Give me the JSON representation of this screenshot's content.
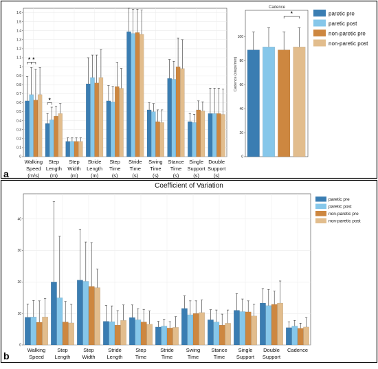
{
  "figure_labels": {
    "a": "a",
    "b": "b"
  },
  "legend": [
    {
      "name": "paretic pre",
      "color": "#3a7db2"
    },
    {
      "name": "paretic post",
      "color": "#86c7ea"
    },
    {
      "name": "non-paretic pre",
      "color": "#cd8740"
    },
    {
      "name": "non-paretic post",
      "color": "#e2bd8d"
    }
  ],
  "chart_data": [
    {
      "id": "spatiotemporal",
      "type": "bar",
      "grid": true,
      "ylim": [
        0,
        1.65
      ],
      "yticks": [
        "0",
        "0.1",
        "0.2",
        "0.3",
        "0.4",
        "0.5",
        "0.6",
        "0.7",
        "0.8",
        "0.9",
        "1",
        "1.1",
        "1.2",
        "1.3",
        "1.4",
        "1.5",
        "1.6"
      ],
      "categories": [
        [
          "Walking",
          "Speed",
          "(m/s)"
        ],
        [
          "Step",
          "Length",
          "(m)"
        ],
        [
          "Step",
          "Width",
          "(m)"
        ],
        [
          "Stride",
          "Length",
          "(m)"
        ],
        [
          "Step",
          "Time",
          "(s)"
        ],
        [
          "Stride",
          "Time",
          "(s)"
        ],
        [
          "Swing",
          "Time",
          "(s)"
        ],
        [
          "Stance",
          "Time",
          "(s)"
        ],
        [
          "Single",
          "Support",
          "(s)"
        ],
        [
          "Double",
          "Support",
          "(s)"
        ]
      ],
      "series": [
        {
          "name": "paretic pre",
          "values": [
            0.62,
            0.37,
            0.17,
            0.81,
            0.62,
            1.39,
            0.52,
            0.87,
            0.39,
            0.48
          ],
          "errors": [
            0.27,
            0.11,
            0.04,
            0.29,
            0.17,
            0.26,
            0.08,
            0.21,
            0.09,
            0.28
          ]
        },
        {
          "name": "paretic post",
          "values": [
            0.69,
            0.41,
            0.17,
            0.88,
            0.61,
            1.37,
            0.5,
            0.86,
            0.38,
            0.48
          ],
          "errors": [
            0.3,
            0.14,
            0.04,
            0.25,
            0.17,
            0.27,
            0.09,
            0.2,
            0.09,
            0.28
          ]
        },
        {
          "name": "non-paretic pre",
          "values": [
            0.63,
            0.45,
            0.17,
            0.82,
            0.78,
            1.38,
            0.39,
            1.0,
            0.52,
            0.48
          ],
          "errors": [
            0.34,
            0.11,
            0.04,
            0.31,
            0.27,
            0.26,
            0.13,
            0.32,
            0.1,
            0.28
          ]
        },
        {
          "name": "non-paretic post",
          "values": [
            0.69,
            0.48,
            0.17,
            0.88,
            0.76,
            1.36,
            0.38,
            0.98,
            0.51,
            0.47
          ],
          "errors": [
            0.3,
            0.11,
            0.04,
            0.31,
            0.22,
            0.27,
            0.14,
            0.32,
            0.1,
            0.28
          ]
        }
      ],
      "annotations": [
        "*",
        "*",
        "*"
      ]
    },
    {
      "id": "cadence",
      "type": "bar",
      "title": "Cadence",
      "ylabel": "Cadence (steps/min)",
      "ylim": [
        0,
        122
      ],
      "yticks": [
        "0",
        "20",
        "40",
        "60",
        "80",
        "100"
      ],
      "series": [
        {
          "name": "paretic pre",
          "values": [
            89
          ],
          "errors": [
            15
          ]
        },
        {
          "name": "paretic post",
          "values": [
            91.5
          ],
          "errors": [
            16
          ]
        },
        {
          "name": "non-paretic pre",
          "values": [
            89
          ],
          "errors": [
            15
          ]
        },
        {
          "name": "non-paretic post",
          "values": [
            91.5
          ],
          "errors": [
            16
          ]
        }
      ],
      "annotations": [
        "*"
      ]
    },
    {
      "id": "cv",
      "type": "bar",
      "title": "Coefficient of Variation",
      "grid": true,
      "ylim": [
        0,
        48
      ],
      "yticks": [
        "0",
        "10",
        "20",
        "30",
        "40"
      ],
      "categories": [
        [
          "Walking",
          "Speed"
        ],
        [
          "Step",
          "Length"
        ],
        [
          "Step",
          "Width"
        ],
        [
          "Stride",
          "Length"
        ],
        [
          "Step",
          "Time"
        ],
        [
          "Stride",
          "Time"
        ],
        [
          "Swing",
          "Time"
        ],
        [
          "Stance",
          "Time"
        ],
        [
          "Single",
          "Support"
        ],
        [
          "Double",
          "Support"
        ],
        [
          "Cadence"
        ]
      ],
      "series": [
        {
          "name": "paretic pre",
          "values": [
            8.8,
            20.0,
            20.6,
            7.5,
            8.7,
            5.7,
            11.6,
            8.0,
            11.0,
            13.3,
            5.5
          ],
          "errors": [
            4.2,
            25.5,
            16.2,
            5.0,
            4.0,
            1.8,
            4.0,
            3.2,
            5.3,
            4.6,
            1.8
          ]
        },
        {
          "name": "paretic post",
          "values": [
            8.9,
            15.0,
            20.2,
            7.4,
            8.0,
            6.0,
            9.6,
            7.3,
            10.6,
            12.5,
            6.0
          ],
          "errors": [
            5.2,
            19.5,
            12.5,
            5.0,
            3.5,
            2.2,
            4.4,
            3.8,
            4.0,
            5.1,
            1.8
          ]
        },
        {
          "name": "non-paretic pre",
          "values": [
            7.2,
            7.3,
            18.6,
            6.3,
            7.3,
            5.4,
            10.0,
            6.3,
            10.5,
            12.9,
            5.3
          ],
          "errors": [
            6.8,
            6.5,
            13.9,
            4.6,
            4.0,
            2.0,
            4.0,
            3.5,
            3.5,
            4.2,
            1.6
          ]
        },
        {
          "name": "non-paretic post",
          "values": [
            8.9,
            7.0,
            18.2,
            7.8,
            6.6,
            5.6,
            10.3,
            6.9,
            9.2,
            13.3,
            5.7
          ],
          "errors": [
            5.8,
            5.9,
            5.9,
            4.9,
            4.2,
            3.4,
            4.0,
            4.2,
            3.7,
            7.0,
            3.0
          ]
        }
      ]
    }
  ]
}
